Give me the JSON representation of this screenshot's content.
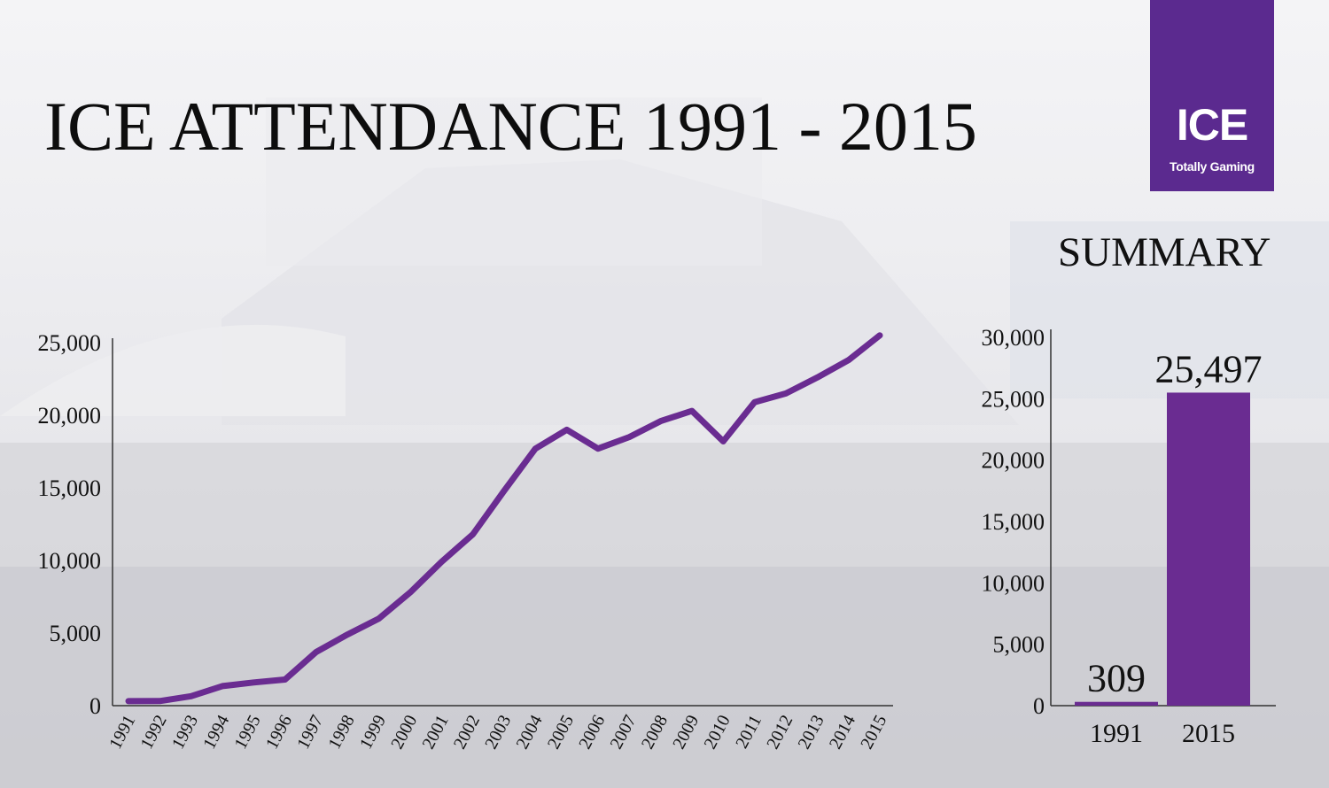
{
  "title": "ICE ATTENDANCE 1991 - 2015",
  "logo": {
    "text": "ICE",
    "tagline": "Totally Gaming"
  },
  "colors": {
    "accent": "#6a2c91",
    "logo_bg": "#5b2a8f",
    "text": "#111111"
  },
  "summary_title": "SUMMARY",
  "chart_data": [
    {
      "type": "line",
      "x": [
        "1991",
        "1992",
        "1993",
        "1994",
        "1995",
        "1996",
        "1997",
        "1998",
        "1999",
        "2000",
        "2001",
        "2002",
        "2003",
        "2004",
        "2005",
        "2006",
        "2007",
        "2008",
        "2009",
        "2010",
        "2011",
        "2012",
        "2013",
        "2014",
        "2015"
      ],
      "series": [
        {
          "values": [
            309,
            320,
            650,
            1350,
            1600,
            1800,
            3700,
            4900,
            6000,
            7800,
            9900,
            11800,
            14800,
            17700,
            19000,
            17700,
            18500,
            19600,
            20300,
            18200,
            20900,
            21500,
            22600,
            23800,
            25497
          ]
        }
      ],
      "ylim": [
        0,
        25000
      ],
      "yticks": [
        "0",
        "5,000",
        "10,000",
        "15,000",
        "20,000",
        "25,000"
      ],
      "grid": false
    },
    {
      "type": "bar",
      "categories": [
        "1991",
        "2015"
      ],
      "values": [
        309,
        25497
      ],
      "data_labels": [
        "309",
        "25,497"
      ],
      "ylim": [
        0,
        30000
      ],
      "yticks": [
        "0",
        "5,000",
        "10,000",
        "15,000",
        "20,000",
        "25,000",
        "30,000"
      ],
      "grid": false
    }
  ]
}
